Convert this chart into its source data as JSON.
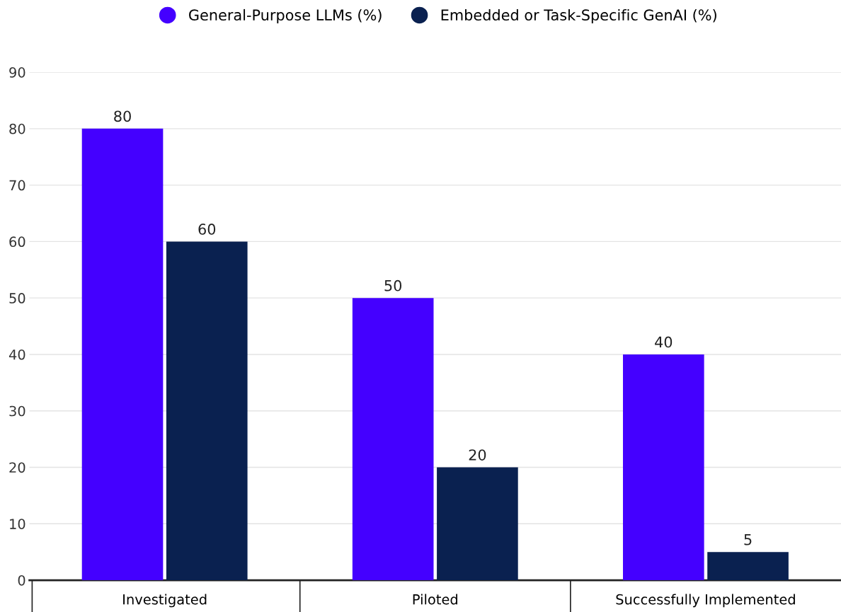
{
  "chart_data": {
    "type": "bar",
    "categories": [
      "Investigated",
      "Piloted",
      "Successfully Implemented"
    ],
    "series": [
      {
        "name": "General-Purpose LLMs (%)",
        "color": "#4400ff",
        "values": [
          80,
          50,
          40
        ]
      },
      {
        "name": "Embedded or Task-Specific GenAI (%)",
        "color": "#0a2150",
        "values": [
          60,
          20,
          5
        ]
      }
    ],
    "ylim": [
      0,
      90
    ],
    "yticks": [
      0,
      10,
      20,
      30,
      40,
      50,
      60,
      70,
      80,
      90
    ],
    "grid": "y",
    "legend": "top",
    "data_labels": true
  }
}
